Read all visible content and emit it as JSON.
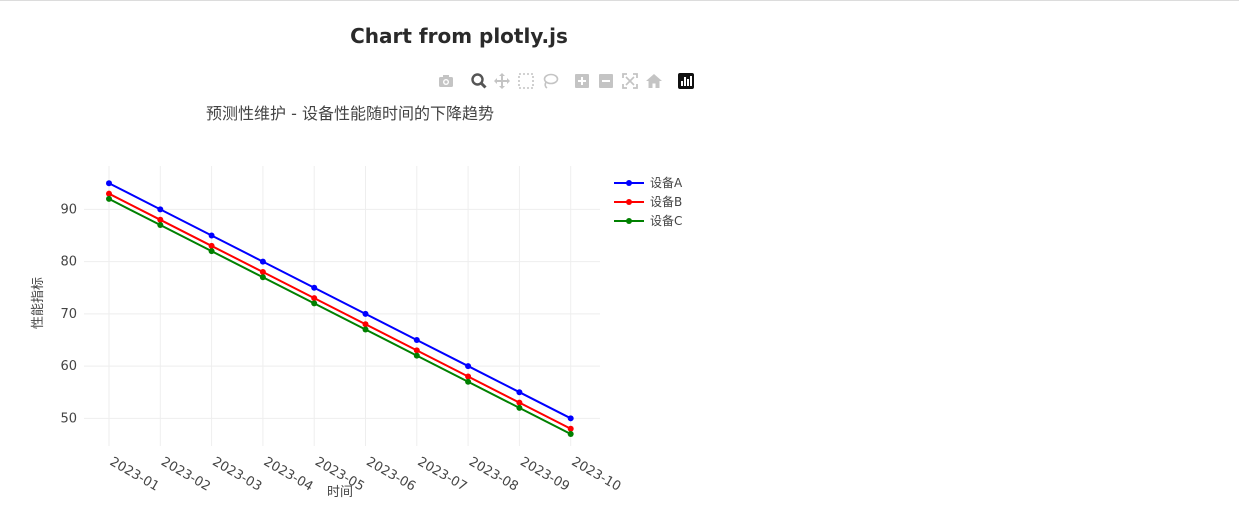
{
  "page": {
    "title": "Chart from plotly.js"
  },
  "modebar": {
    "buttons": [
      "camera-icon",
      "zoom-icon",
      "pan-icon",
      "box-select-icon",
      "lasso-icon",
      "zoom-in-icon",
      "zoom-out-icon",
      "autoscale-icon",
      "reset-axes-icon",
      "plotly-logo-icon"
    ]
  },
  "chart_data": {
    "type": "line",
    "title": "预测性维护 - 设备性能随时间的下降趋势",
    "xlabel": "时间",
    "ylabel": "性能指标",
    "categories": [
      "2023-01",
      "2023-02",
      "2023-03",
      "2023-04",
      "2023-05",
      "2023-06",
      "2023-07",
      "2023-08",
      "2023-09",
      "2023-10"
    ],
    "series": [
      {
        "name": "设备A",
        "color": "#0000ff",
        "values": [
          95,
          90,
          85,
          80,
          75,
          70,
          65,
          60,
          55,
          50
        ]
      },
      {
        "name": "设备B",
        "color": "#ff0000",
        "values": [
          93,
          88,
          83,
          78,
          73,
          68,
          63,
          58,
          53,
          48
        ]
      },
      {
        "name": "设备C",
        "color": "#008000",
        "values": [
          92,
          87,
          82,
          77,
          72,
          67,
          62,
          57,
          52,
          47
        ]
      }
    ],
    "yticks": [
      50,
      60,
      70,
      80,
      90
    ],
    "ylim": [
      44.7,
      98.3
    ],
    "grid": true,
    "legend_position": "top-right"
  }
}
